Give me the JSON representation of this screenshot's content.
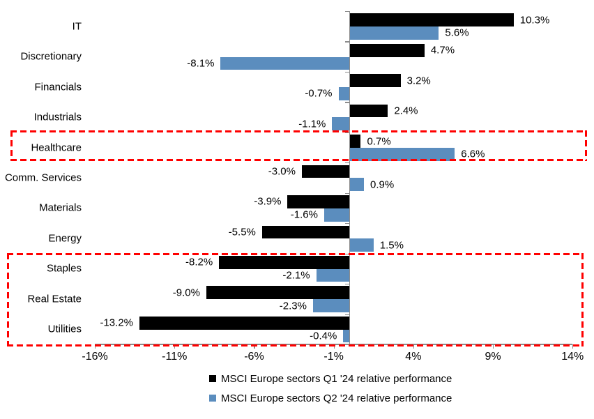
{
  "chart_data": {
    "type": "bar",
    "orientation": "horizontal",
    "title": "",
    "categories": [
      "IT",
      "Discretionary",
      "Financials",
      "Industrials",
      "Healthcare",
      "Comm. Services",
      "Materials",
      "Energy",
      "Staples",
      "Real Estate",
      "Utilities"
    ],
    "series": [
      {
        "name": "MSCI Europe sectors Q1 '24 relative performance",
        "color": "#000000",
        "values": [
          10.3,
          4.7,
          3.2,
          2.4,
          0.7,
          -3.0,
          -3.9,
          -5.5,
          -8.2,
          -9.0,
          -13.2
        ]
      },
      {
        "name": "MSCI Europe sectors Q2 '24 relative performance",
        "color": "#5B8DBE",
        "values": [
          5.6,
          -8.1,
          -0.7,
          -1.1,
          6.6,
          0.9,
          -1.6,
          1.5,
          -2.1,
          -2.3,
          -0.4
        ]
      }
    ],
    "value_labels": "outside-end, format 0.0%",
    "x_ticks": [
      {
        "value": -16,
        "label": "-16%"
      },
      {
        "value": -11,
        "label": "-11%"
      },
      {
        "value": -6,
        "label": "-6%"
      },
      {
        "value": -1,
        "label": "-1%"
      },
      {
        "value": 4,
        "label": "4%"
      },
      {
        "value": 9,
        "label": "9%"
      },
      {
        "value": 14,
        "label": "14%"
      }
    ],
    "xlim": [
      -16,
      14
    ],
    "grid": false,
    "legend_position": "bottom",
    "axis_color": "#8C8C8C"
  },
  "annotations": {
    "highlight_boxes": [
      {
        "categories": [
          "Healthcare"
        ],
        "color": "#FF0000",
        "style": "dashed"
      },
      {
        "categories": [
          "Staples",
          "Real Estate",
          "Utilities"
        ],
        "color": "#FF0000",
        "style": "dashed"
      }
    ]
  },
  "legend": {
    "items": [
      {
        "label": "MSCI Europe sectors Q1 '24 relative performance",
        "color": "#000000"
      },
      {
        "label": "MSCI Europe sectors Q2 '24 relative performance",
        "color": "#5B8DBE"
      }
    ]
  }
}
